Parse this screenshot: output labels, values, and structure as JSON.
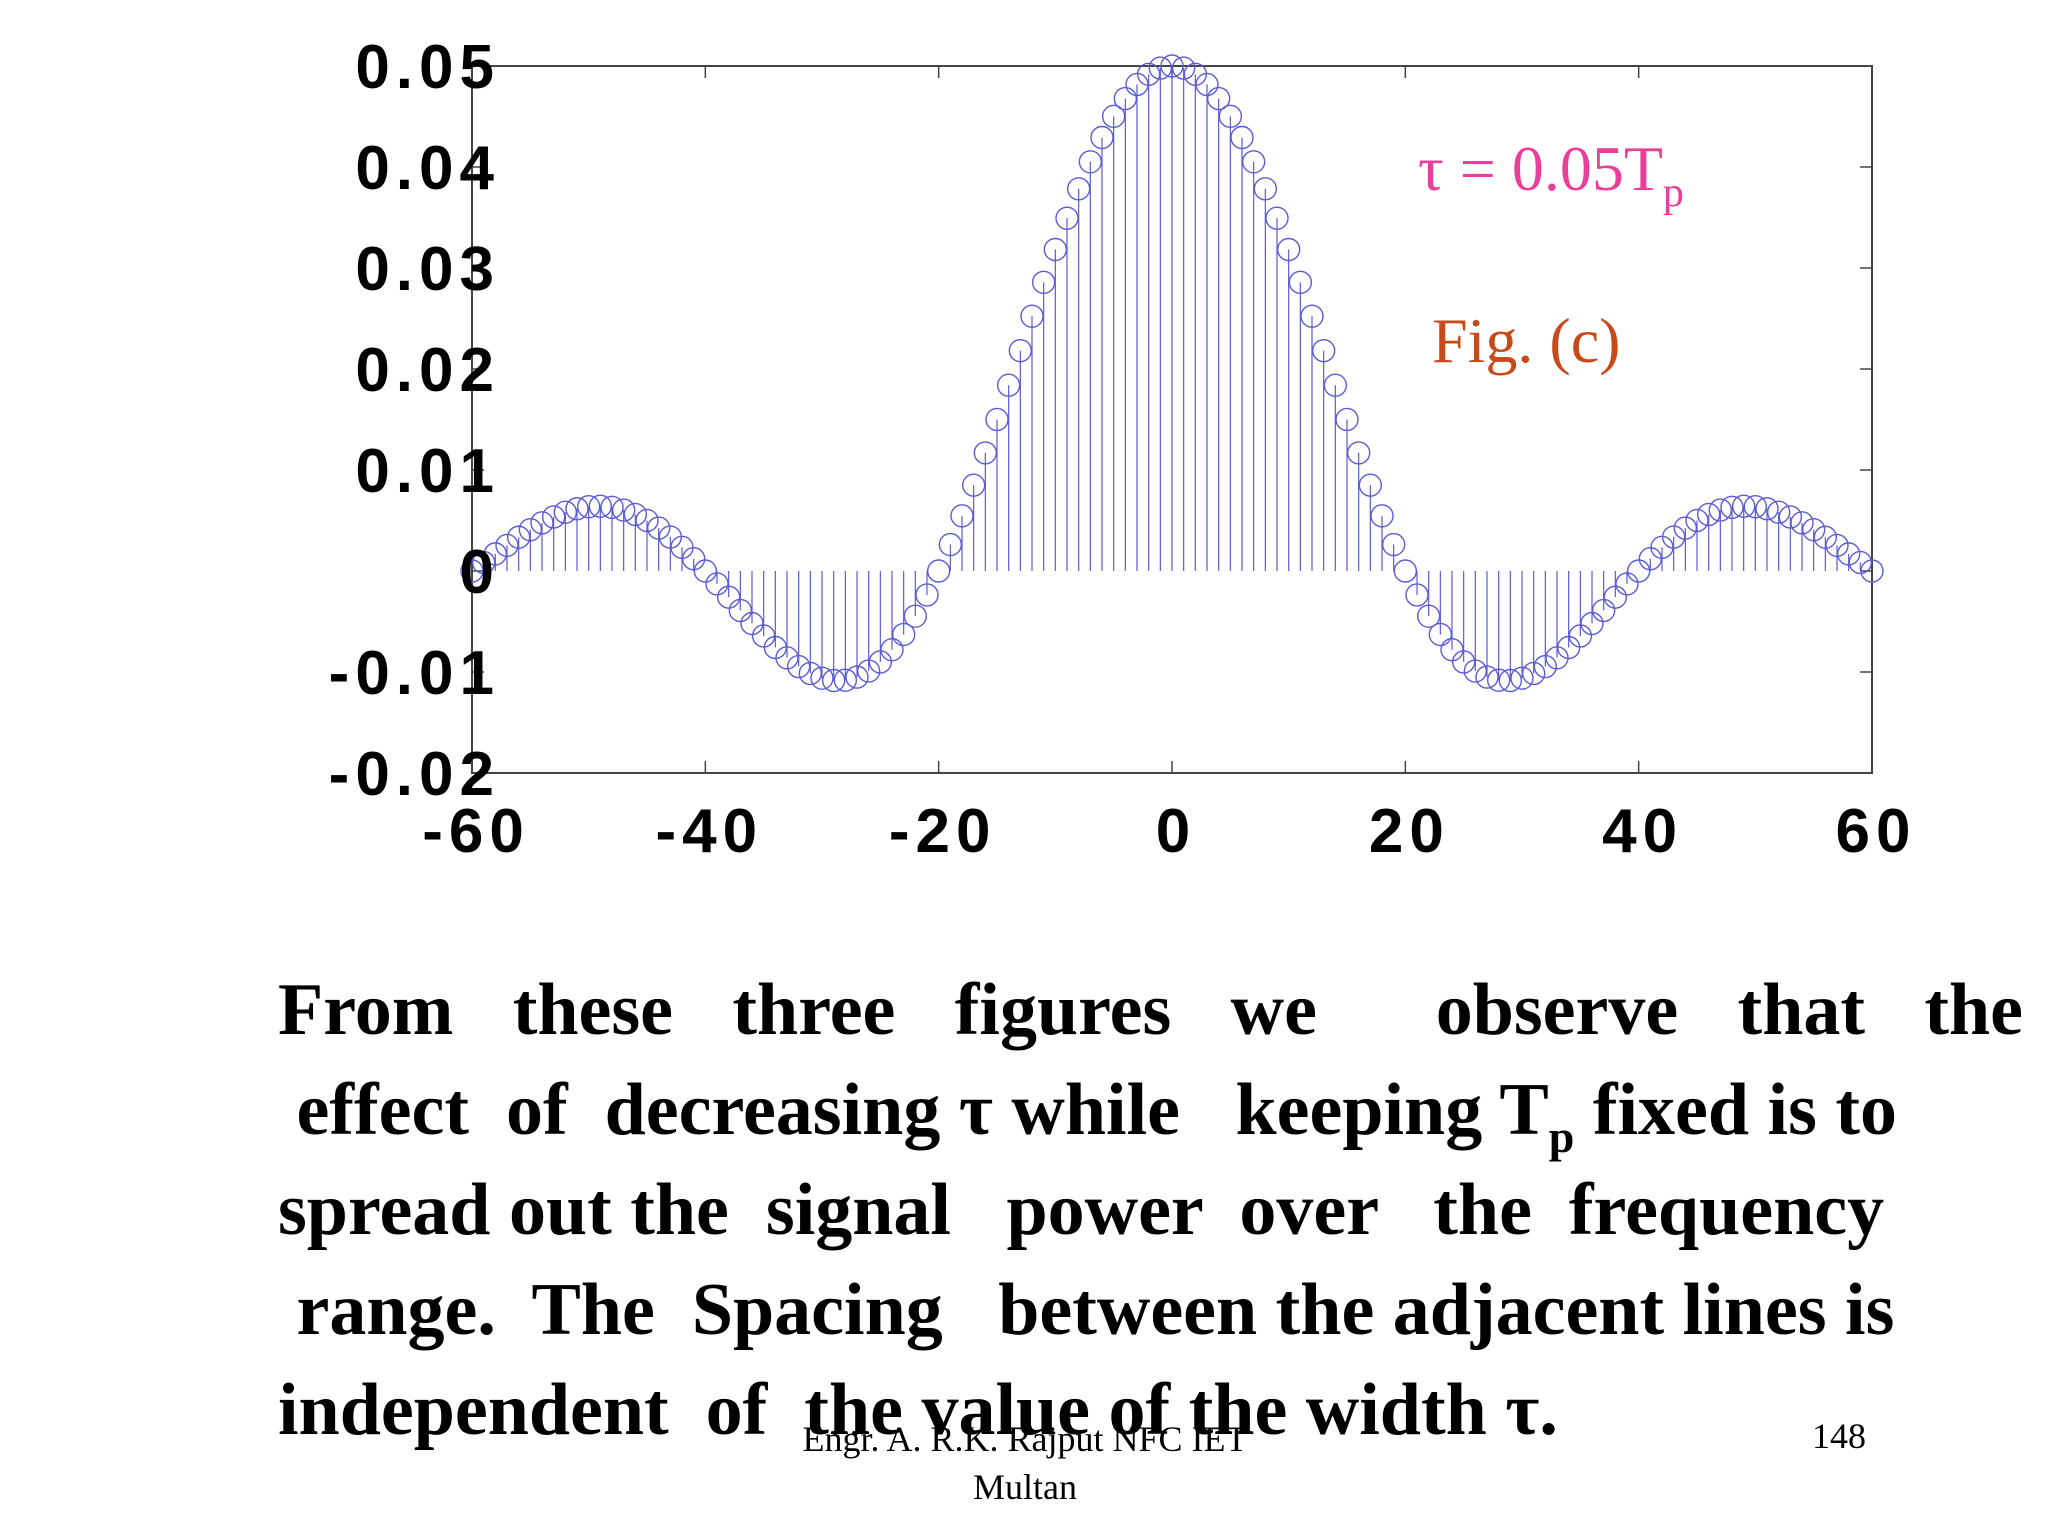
{
  "chart_data": {
    "type": "stem",
    "title": "",
    "xlabel": "",
    "ylabel": "",
    "xlim": [
      -60,
      60
    ],
    "ylim": [
      -0.02,
      0.05
    ],
    "x_ticks": [
      "-60",
      "-40",
      "-20",
      "0",
      "20",
      "40",
      "60"
    ],
    "y_ticks": [
      "0.05",
      "0.04",
      "0.03",
      "0.02",
      "0.01",
      "0",
      "-0.01",
      "-0.02"
    ],
    "x_tick_values": [
      -60,
      -40,
      -20,
      0,
      20,
      40,
      60
    ],
    "y_tick_values": [
      0.05,
      0.04,
      0.03,
      0.02,
      0.01,
      0,
      -0.01,
      -0.02
    ],
    "series": [
      {
        "x_start": -60,
        "x_end": 60,
        "x_step": 1,
        "tau_over_Tp": 0.05,
        "formula": "0.05*sinc(0.05*n)",
        "peak": 0.05,
        "color": "#5b5bd6"
      }
    ],
    "grid": false,
    "annotations": [
      {
        "text": "τ = 0.05T",
        "sub": "p",
        "color": "#e8409a"
      },
      {
        "text": "Fig. (c)",
        "color": "#c84a1a"
      }
    ]
  },
  "body": {
    "lines": [
      [
        "From",
        "these",
        "three",
        "figures",
        "we  observe that the"
      ],
      [
        " effect  of  decreasing τ while   keeping T",
        "p",
        " fixed is to"
      ],
      [
        "spread out the  signal   power  over   the  frequency"
      ],
      [
        " range.  The  Spacing   between the adjacent lines is"
      ],
      [
        "independent  of  the value of the width τ."
      ]
    ]
  },
  "footer": {
    "author_line1": "Engr. A. R.K. Rajput NFC IET",
    "author_line2": "Multan",
    "page_number": "148"
  }
}
